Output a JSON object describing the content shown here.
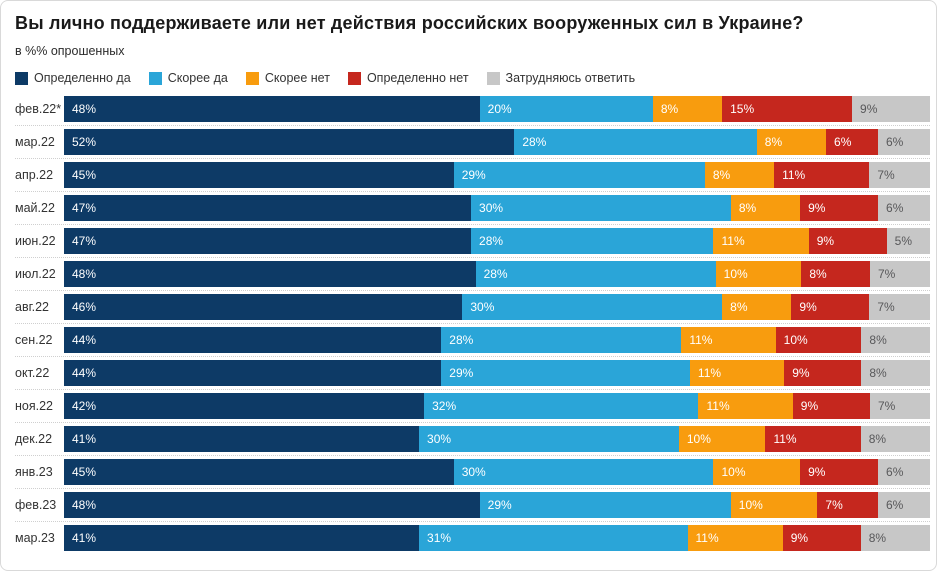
{
  "header": {
    "title": "Вы лично поддерживаете или нет действия российских вооруженных сил в Украине?",
    "subtitle": "в %% опрошенных"
  },
  "colors": {
    "definitely_yes": "#0d3a66",
    "rather_yes": "#2aa5d8",
    "rather_no": "#f89c0e",
    "definitely_no": "#c5271e",
    "hard_to_answer": "#c7c7c7",
    "value_label_on_color": "#ffffff",
    "value_label_on_gray": "#58585a",
    "row_separator": "#cfcfcf"
  },
  "chart_data": {
    "type": "bar",
    "orientation": "horizontal",
    "stacked": true,
    "unit": "%",
    "xlim": [
      0,
      100
    ],
    "legend_position": "top",
    "grid": false,
    "title": "Вы лично поддерживаете или нет действия российских вооруженных сил в Украине?",
    "subtitle": "в %% опрошенных",
    "categories": [
      "фев.22*",
      "мар.22",
      "апр.22",
      "май.22",
      "июн.22",
      "июл.22",
      "авг.22",
      "сен.22",
      "окт.22",
      "ноя.22",
      "дек.22",
      "янв.23",
      "фев.23",
      "мар.23"
    ],
    "series": [
      {
        "name": "Определенно да",
        "color": "#0d3a66",
        "values": [
          48,
          52,
          45,
          47,
          47,
          48,
          46,
          44,
          44,
          42,
          41,
          45,
          48,
          41
        ]
      },
      {
        "name": "Скорее да",
        "color": "#2aa5d8",
        "values": [
          20,
          28,
          29,
          30,
          28,
          28,
          30,
          28,
          29,
          32,
          30,
          30,
          29,
          31
        ]
      },
      {
        "name": "Скорее нет",
        "color": "#f89c0e",
        "values": [
          8,
          8,
          8,
          8,
          11,
          10,
          8,
          11,
          11,
          11,
          10,
          10,
          10,
          11
        ]
      },
      {
        "name": "Определенно нет",
        "color": "#c5271e",
        "values": [
          15,
          6,
          11,
          9,
          9,
          8,
          9,
          10,
          9,
          9,
          11,
          9,
          7,
          9
        ]
      },
      {
        "name": "Затрудняюсь ответить",
        "color": "#c7c7c7",
        "values": [
          9,
          6,
          7,
          6,
          5,
          7,
          7,
          8,
          8,
          7,
          8,
          6,
          6,
          8
        ]
      }
    ]
  }
}
